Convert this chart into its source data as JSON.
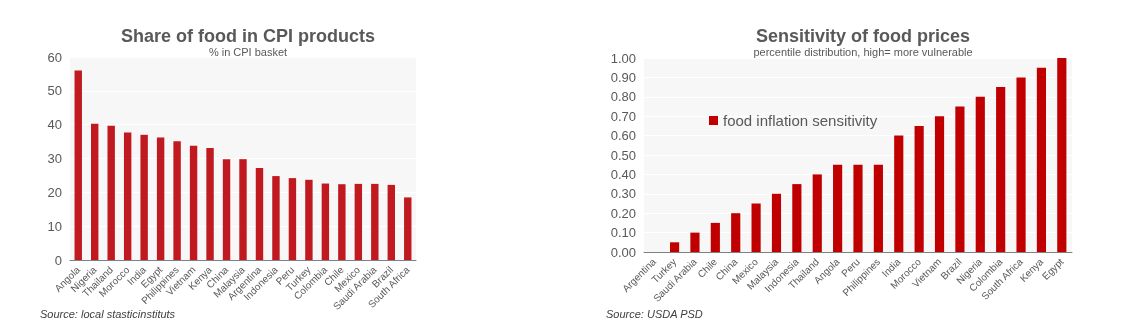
{
  "chart_data": [
    {
      "type": "bar",
      "title": "Share of food in CPI products",
      "subtitle": "% in CPI basket",
      "categories": [
        "Angola",
        "Nigeria",
        "Thailand",
        "Morocco",
        "India",
        "Egypt",
        "Philippines",
        "Vietnam",
        "Kenya",
        "China",
        "Malaysia",
        "Argentina",
        "Indonesia",
        "Peru",
        "Turkey",
        "Colombia",
        "Chile",
        "Mexico",
        "Saudi Arabia",
        "Brazil",
        "South Africa"
      ],
      "series": [
        {
          "color": "#c0191f",
          "values": [
            56,
            40.3,
            39.7,
            37.7,
            37,
            36.2,
            35.1,
            33.8,
            33.1,
            29.8,
            29.8,
            27.2,
            24.8,
            24.2,
            23.7,
            22.6,
            22.4,
            22.5,
            22.5,
            22.2,
            18.5
          ]
        }
      ],
      "ylim": [
        0,
        60
      ],
      "yticks": [
        0,
        10,
        20,
        30,
        40,
        50,
        60
      ],
      "grid": "y",
      "annotations": [
        "Source: local stasticinstituts"
      ]
    },
    {
      "type": "bar",
      "title": "Sensitivity of food prices",
      "subtitle": "percentile distribution, high= more vulnerable",
      "categories": [
        "Argentina",
        "Turkey",
        "Saudi Arabia",
        "Chile",
        "China",
        "Mexico",
        "Malaysia",
        "Indonesia",
        "Thailand",
        "Angola",
        "Peru",
        "Philippines",
        "India",
        "Morocco",
        "Vietnam",
        "Brazil",
        "Nigeria",
        "Colombia",
        "South Africa",
        "Kenya",
        "Egypt"
      ],
      "series": [
        {
          "name": "food inflation sensitivity",
          "color": "#c00000",
          "values": [
            0,
            0.05,
            0.1,
            0.15,
            0.2,
            0.25,
            0.3,
            0.35,
            0.4,
            0.45,
            0.45,
            0.45,
            0.6,
            0.65,
            0.7,
            0.75,
            0.8,
            0.85,
            0.9,
            0.95,
            1.0
          ]
        }
      ],
      "ylim": [
        0,
        1
      ],
      "yticks": [
        {
          "value": 0,
          "label": "0.00"
        },
        {
          "value": 0.1,
          "label": "0.10"
        },
        {
          "value": 0.2,
          "label": "0.20"
        },
        {
          "value": 0.3,
          "label": "0.30"
        },
        {
          "value": 0.4,
          "label": "0.40"
        },
        {
          "value": 0.5,
          "label": "0.50"
        },
        {
          "value": 0.6,
          "label": "0.60"
        },
        {
          "value": 0.7,
          "label": "0.70"
        },
        {
          "value": 0.8,
          "label": "0.80"
        },
        {
          "value": 0.9,
          "label": "0.90"
        },
        {
          "value": 1,
          "label": "1.00"
        }
      ],
      "grid": "y",
      "legend": "top left",
      "annotations": [
        "Source: USDA PSD"
      ]
    }
  ]
}
